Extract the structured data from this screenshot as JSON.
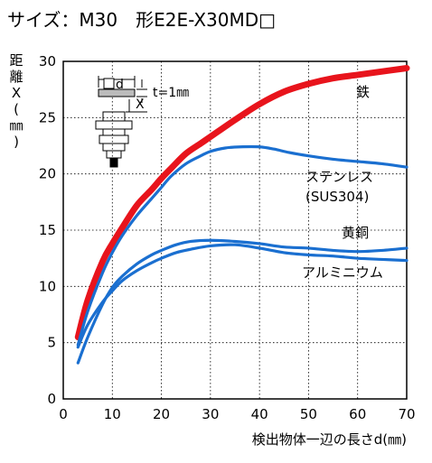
{
  "title": "サイズ：M30　形E2E-X30MD□",
  "chart_data": {
    "type": "line",
    "xlabel": "検出物体一辺の長さd(㎜)",
    "ylabel": "距離X(㎜)",
    "xlim": [
      0,
      70
    ],
    "ylim": [
      0,
      30
    ],
    "xticks": [
      0,
      10,
      20,
      30,
      40,
      50,
      60,
      70
    ],
    "yticks": [
      0,
      5,
      10,
      15,
      20,
      25,
      30
    ],
    "grid": true,
    "inset": {
      "d_label": "d",
      "x_label": "X",
      "t_label": "t=1㎜"
    },
    "series": [
      {
        "name": "鉄",
        "color": "#e8141c",
        "x": [
          3,
          5,
          8,
          10,
          12,
          15,
          18,
          20,
          22,
          25,
          28,
          30,
          35,
          40,
          45,
          50,
          55,
          60,
          65,
          70
        ],
        "y": [
          5.5,
          8.8,
          12.2,
          13.8,
          15.2,
          17.2,
          18.6,
          19.6,
          20.5,
          21.8,
          22.7,
          23.3,
          24.8,
          26.2,
          27.3,
          28.0,
          28.5,
          28.8,
          29.1,
          29.4
        ]
      },
      {
        "name": "ステンレス\n(SUS304)",
        "color": "#1a6fd0",
        "x": [
          3,
          5,
          8,
          10,
          12,
          15,
          18,
          20,
          22,
          25,
          28,
          30,
          33,
          36,
          40,
          43,
          46,
          50,
          55,
          60,
          65,
          70
        ],
        "y": [
          4.8,
          7.8,
          11.2,
          13.0,
          14.5,
          16.3,
          17.8,
          18.8,
          19.8,
          20.9,
          21.6,
          22.0,
          22.3,
          22.4,
          22.4,
          22.2,
          21.9,
          21.6,
          21.3,
          21.1,
          20.9,
          20.6
        ]
      },
      {
        "name": "黄銅",
        "color": "#1a6fd0",
        "x": [
          3,
          5,
          8,
          10,
          12,
          15,
          18,
          20,
          23,
          26,
          30,
          35,
          40,
          45,
          50,
          55,
          60,
          65,
          70
        ],
        "y": [
          3.2,
          5.5,
          8.4,
          9.9,
          10.9,
          12.0,
          12.8,
          13.2,
          13.7,
          14.0,
          14.1,
          14.0,
          13.8,
          13.5,
          13.4,
          13.2,
          13.1,
          13.2,
          13.4
        ]
      },
      {
        "name": "アルミニウム",
        "color": "#1a6fd0",
        "x": [
          3,
          5,
          8,
          10,
          12,
          15,
          18,
          20,
          23,
          26,
          30,
          35,
          40,
          45,
          50,
          55,
          60,
          65,
          70
        ],
        "y": [
          4.6,
          6.6,
          8.6,
          9.6,
          10.5,
          11.4,
          12.1,
          12.5,
          13.0,
          13.3,
          13.6,
          13.7,
          13.4,
          13.0,
          12.8,
          12.7,
          12.5,
          12.4,
          12.3
        ]
      }
    ]
  }
}
